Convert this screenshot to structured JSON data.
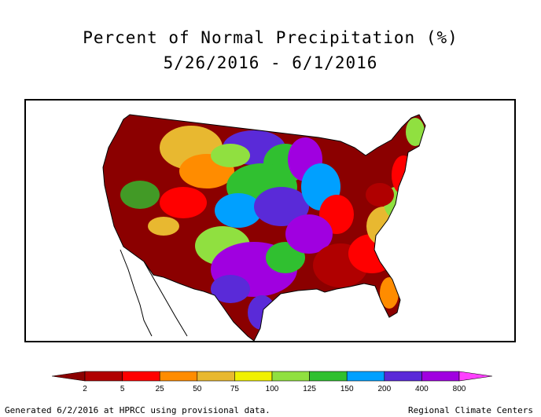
{
  "title_line1": "Percent of Normal Precipitation (%)",
  "title_line2": "5/26/2016 - 6/1/2016",
  "legend": {
    "classes": [
      {
        "color": "#8b0000"
      },
      {
        "color": "#b00000"
      },
      {
        "color": "#ff0000"
      },
      {
        "color": "#ff8c00"
      },
      {
        "color": "#e8b830"
      },
      {
        "color": "#f0f000"
      },
      {
        "color": "#90e040"
      },
      {
        "color": "#30c030"
      },
      {
        "color": "#00a0ff"
      },
      {
        "color": "#5a2ad8"
      },
      {
        "color": "#a000e0"
      },
      {
        "color": "#ff40ff"
      }
    ],
    "labels": [
      "2",
      "5",
      "25",
      "50",
      "75",
      "100",
      "125",
      "150",
      "200",
      "400",
      "800"
    ]
  },
  "footer_left": "Generated 6/2/2016 at HPRCC using provisional data.",
  "footer_right": "Regional Climate Centers"
}
